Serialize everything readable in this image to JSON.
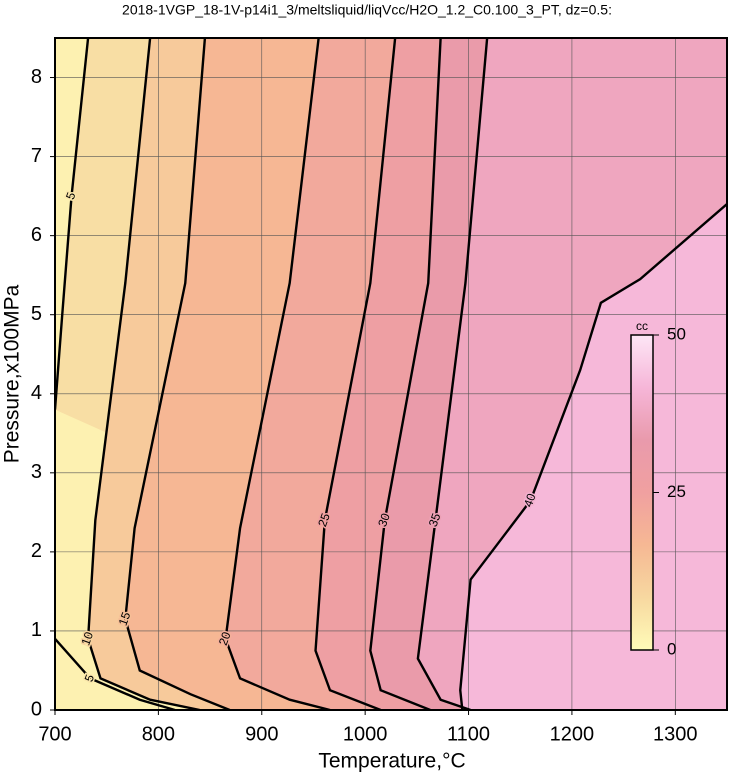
{
  "chart_data": {
    "type": "contour",
    "title": "2018-1VGP_18-1V-p14i1_3/meltsliquid/liqVcc/H2O_1.2_C0.100_3_PT, dz=0.5:",
    "x_label": "Temperature,°C",
    "y_label": "Pressure,x100MPa",
    "xlim": [
      700,
      1350
    ],
    "ylim": [
      0,
      8.5
    ],
    "xticks": [
      700,
      800,
      900,
      1000,
      1100,
      1200,
      1300
    ],
    "yticks": [
      0,
      1,
      2,
      3,
      4,
      5,
      6,
      7,
      8
    ],
    "grid": true,
    "contours": [
      {
        "level": 5,
        "x": [
          732,
          716,
          707,
          700
        ],
        "y": [
          8.5,
          6.5,
          5,
          3.8
        ]
      },
      {
        "level": 5,
        "x": [
          700,
          734,
          782,
          816
        ],
        "y": [
          0.9,
          0.4,
          0.13,
          0
        ]
      },
      {
        "level": 10,
        "x": [
          792,
          768,
          739,
          732,
          744,
          792,
          840
        ],
        "y": [
          8.5,
          5.4,
          2.4,
          0.9,
          0.4,
          0.13,
          0
        ]
      },
      {
        "level": 15,
        "x": [
          845,
          826,
          777,
          768,
          782,
          831,
          869
        ],
        "y": [
          8.5,
          5.4,
          2.3,
          1.15,
          0.5,
          0.2,
          0
        ]
      },
      {
        "level": 20,
        "x": [
          955,
          927,
          879,
          865,
          879,
          927,
          966
        ],
        "y": [
          8.5,
          5.4,
          2.3,
          0.9,
          0.4,
          0.13,
          0
        ]
      },
      {
        "level": 25,
        "x": [
          1029,
          1005,
          961,
          952,
          966,
          1015
        ],
        "y": [
          8.5,
          5.4,
          2.4,
          0.75,
          0.25,
          0
        ]
      },
      {
        "level": 30,
        "x": [
          1073,
          1061,
          1019,
          1005,
          1015,
          1063
        ],
        "y": [
          8.5,
          5.4,
          2.4,
          0.75,
          0.25,
          0
        ]
      },
      {
        "level": 35,
        "x": [
          1118,
          1097,
          1068,
          1051,
          1073,
          1102
        ],
        "y": [
          8.5,
          5.4,
          2.4,
          0.65,
          0.13,
          0
        ]
      },
      {
        "level": 40,
        "x": [
          1094,
          1092,
          1102,
          1160,
          1208,
          1228,
          1266,
          1350
        ],
        "y": [
          0,
          0.25,
          1.65,
          2.65,
          4.3,
          5.15,
          5.45,
          6.4
        ]
      }
    ],
    "colorbar": {
      "label": "cc",
      "lim": [
        0,
        50
      ],
      "ticks": [
        0,
        25,
        50
      ],
      "colors": [
        "#fffbb8",
        "#f7d8a0",
        "#f6b894",
        "#f0a0a0",
        "#e99aac",
        "#f6b6d8",
        "#fde6f6"
      ]
    }
  }
}
